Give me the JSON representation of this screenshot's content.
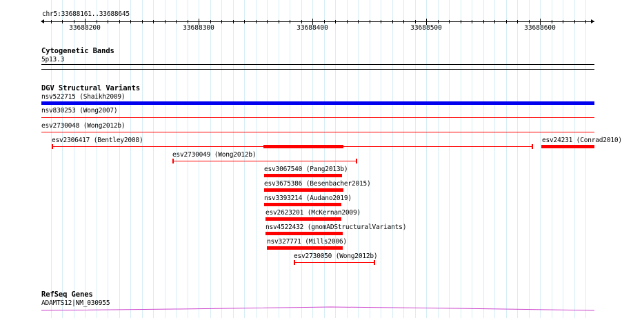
{
  "region": "chr5:33688161..33688645",
  "ruler": {
    "ticks": [
      {
        "value": 33688200,
        "label": "33688200"
      },
      {
        "value": 33688300,
        "label": "33688300"
      },
      {
        "value": 33688400,
        "label": "33688400"
      },
      {
        "value": 33688500,
        "label": "33688500"
      },
      {
        "value": 33688600,
        "label": "33688600"
      }
    ]
  },
  "tracks": {
    "cytoband": {
      "title": "Cytogenetic Bands",
      "band": "5p13.3"
    },
    "dgv": {
      "title": "DGV Structural Variants",
      "variants": [
        {
          "label": "nsv522715 (Shaikh2009)"
        },
        {
          "label": "nsv830253 (Wong2007)"
        },
        {
          "label": "esv2730048 (Wong2012b)"
        },
        {
          "label": "esv2306417 (Bentley2008)"
        },
        {
          "label": "esv24231 (Conrad2010)"
        },
        {
          "label": "esv2730049 (Wong2012b)"
        },
        {
          "label": "esv3067540 (Pang2013b)"
        },
        {
          "label": "esv3675386 (Besenbacher2015)"
        },
        {
          "label": "nsv3393214 (Audano2019)"
        },
        {
          "label": "esv2623201 (McKernan2009)"
        },
        {
          "label": "nsv4522432 (gnomADStructuralVariants)"
        },
        {
          "label": "nsv327771 (Mills2006)"
        },
        {
          "label": "esv2730050 (Wong2012b)"
        }
      ]
    },
    "refseq": {
      "title": "RefSeq Genes",
      "gene": "ADAMTS12|NM_030955"
    }
  },
  "colors": {
    "variant": "#ff0000",
    "variant_blue": "#0000ee",
    "gene": "#cc44cc",
    "grid": "#d6eef6"
  }
}
